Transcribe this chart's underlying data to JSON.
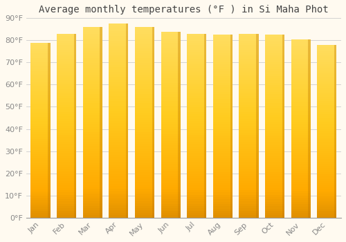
{
  "title": "Average monthly temperatures (°F ) in Si Maha Phot",
  "months": [
    "Jan",
    "Feb",
    "Mar",
    "Apr",
    "May",
    "Jun",
    "Jul",
    "Aug",
    "Sep",
    "Oct",
    "Nov",
    "Dec"
  ],
  "values": [
    79,
    83,
    86,
    87.5,
    86,
    84,
    83,
    82.5,
    83,
    82.5,
    80.5,
    78
  ],
  "bar_color_bottom": "#F0A000",
  "bar_color_mid": "#FFD040",
  "bar_color_top": "#FFC820",
  "bar_shadow_color": "#E09000",
  "background_color": "#FFFAF0",
  "grid_color": "#CCCCCC",
  "ylim": [
    0,
    90
  ],
  "yticks": [
    0,
    10,
    20,
    30,
    40,
    50,
    60,
    70,
    80,
    90
  ],
  "ytick_labels": [
    "0°F",
    "10°F",
    "20°F",
    "30°F",
    "40°F",
    "50°F",
    "60°F",
    "70°F",
    "80°F",
    "90°F"
  ],
  "title_fontsize": 10,
  "tick_fontsize": 8,
  "bar_width": 0.75
}
